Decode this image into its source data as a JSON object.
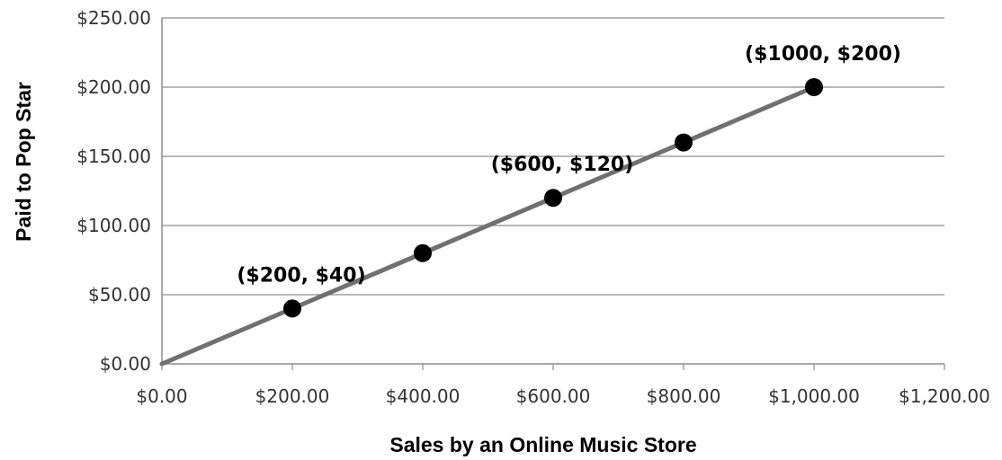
{
  "chart_data": {
    "type": "scatter",
    "title": "",
    "xlabel": "Sales by an Online Music Store",
    "ylabel": "Paid to Pop Star",
    "xlim": [
      0,
      1200
    ],
    "ylim": [
      0,
      250
    ],
    "x_ticks": [
      0,
      200,
      400,
      600,
      800,
      1000,
      1200
    ],
    "y_ticks": [
      0,
      50,
      100,
      150,
      200,
      250
    ],
    "x_tick_labels": [
      "$0.00",
      "$200.00",
      "$400.00",
      "$600.00",
      "$800.00",
      "$1,000.00",
      "$1,200.00"
    ],
    "y_tick_labels": [
      "$0.00",
      "$50.00",
      "$100.00",
      "$150.00",
      "$200.00",
      "$250.00"
    ],
    "grid": {
      "horizontal": true,
      "vertical": false
    },
    "line_color": "#707070",
    "marker_color": "#000000",
    "series": [
      {
        "line": {
          "x": [
            0,
            1000
          ],
          "y": [
            0,
            200
          ]
        },
        "points": [
          {
            "x": 200,
            "y": 40
          },
          {
            "x": 400,
            "y": 80
          },
          {
            "x": 600,
            "y": 120
          },
          {
            "x": 800,
            "y": 160
          },
          {
            "x": 1000,
            "y": 200
          }
        ]
      }
    ],
    "annotations": [
      {
        "text": "($200, $40)",
        "x": 200,
        "y": 40
      },
      {
        "text": "($600, $120)",
        "x": 600,
        "y": 120
      },
      {
        "text": "($1000, $200)",
        "x": 1000,
        "y": 200
      }
    ]
  }
}
